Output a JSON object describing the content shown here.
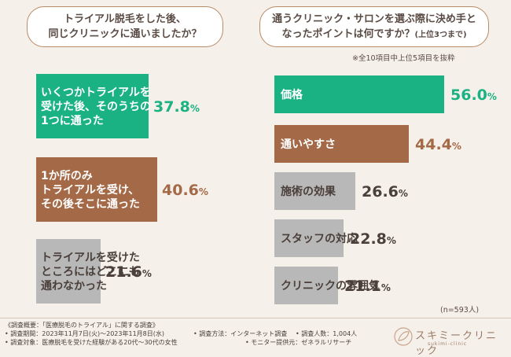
{
  "question_left": {
    "text": "トライアル脱毛をした後、\n同じクリニックに通いましたか？"
  },
  "question_right": {
    "line1": "通うクリニック・サロンを選ぶ際に決め手と",
    "line2": "なったポイントは何ですか？",
    "suffix": "(上位3つまで)"
  },
  "note_top": "※全10項目中上位5項目を抜粋",
  "sample_size": "(n=593人)",
  "footer": {
    "line1": "《調査概要：「医療脱毛のトライアル」に関する調査》",
    "period": "• 調査期間：2023年11月7日(火)〜2023年11月8日(水)",
    "method": "• 調査方法：インターネット調査",
    "people": "• 調査人数：1,004人",
    "target": "• 調査対象：医療脱毛を受けた経験がある20代〜30代の女性",
    "provider": "• モニター提供元：ゼネラルリサーチ"
  },
  "logo": {
    "name": "スキミークリニック",
    "sub": "sukimi-clinic"
  },
  "colors": {
    "green": "#1ab283",
    "brown": "#a46a48",
    "gray": "#b8b8b8",
    "bg": "#f6f0ea"
  },
  "chart_data": [
    {
      "type": "bar",
      "orientation": "horizontal",
      "title": "トライアル脱毛をした後、同じクリニックに通いましたか？",
      "unit": "%",
      "categories": [
        "いくつかトライアルを受けた後、そのうちの1つに通った",
        "1か所のみトライアルを受け、その後そこに通った",
        "トライアルを受けたところにはどこにも通わなかった"
      ],
      "labels": [
        [
          "いくつかトライアルを",
          "受けた後、そのうちの",
          "1つに通った"
        ],
        [
          "1か所のみ",
          "トライアルを受け、",
          "その後そこに通った"
        ],
        [
          "トライアルを受けた",
          "ところにはどこにも",
          "通わなかった"
        ]
      ],
      "values": [
        37.8,
        40.6,
        21.6
      ],
      "value_labels": [
        "37.8",
        "40.6",
        "21.6"
      ],
      "colors": [
        "#1ab283",
        "#a46a48",
        "#b8b8b8"
      ],
      "xlim": [
        0,
        40.6
      ]
    },
    {
      "type": "bar",
      "orientation": "horizontal",
      "title": "通うクリニック・サロンを選ぶ際に決め手となったポイントは何ですか？(上位3つまで)",
      "unit": "%",
      "categories": [
        "価格",
        "通いやすさ",
        "施術の効果",
        "スタッフの対応",
        "クリニックの雰囲気"
      ],
      "values": [
        56.0,
        44.4,
        26.6,
        22.8,
        21.1
      ],
      "value_labels": [
        "56.0",
        "44.4",
        "26.6",
        "22.8",
        "21.1"
      ],
      "colors": [
        "#1ab283",
        "#a46a48",
        "#b8b8b8",
        "#b8b8b8",
        "#b8b8b8"
      ],
      "xlim": [
        0,
        56.0
      ]
    }
  ]
}
